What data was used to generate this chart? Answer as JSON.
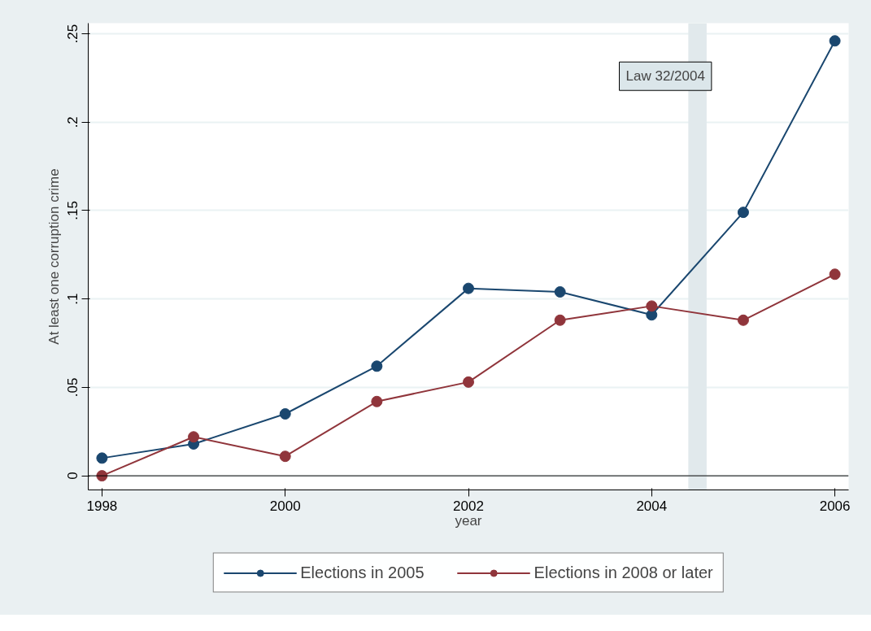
{
  "chart_data": {
    "type": "line",
    "xlabel": "year",
    "ylabel": "At least one corruption crime",
    "x": [
      1998,
      1999,
      2000,
      2001,
      2002,
      2003,
      2004,
      2005,
      2006
    ],
    "series": [
      {
        "name": "Elections in 2005",
        "color": "#1a476f",
        "values": [
          0.01,
          0.018,
          0.035,
          0.062,
          0.106,
          0.104,
          0.091,
          0.149,
          0.246
        ]
      },
      {
        "name": "Elections in 2008 or later",
        "color": "#90353b",
        "values": [
          0,
          0.022,
          0.011,
          0.042,
          0.053,
          0.088,
          0.096,
          0.088,
          0.114
        ]
      }
    ],
    "xlim": [
      1997.85,
      2006.15
    ],
    "ylim": [
      -0.008,
      0.256
    ],
    "xticks": [
      1998,
      2000,
      2002,
      2004,
      2006
    ],
    "yticks": [
      0,
      {
        "value": 0.05,
        "label": ".05"
      },
      {
        "value": 0.1,
        "label": ".1"
      },
      {
        "value": 0.15,
        "label": ".15"
      },
      {
        "value": 0.2,
        "label": ".2"
      },
      {
        "value": 0.25,
        "label": ".25"
      }
    ],
    "bands": [
      {
        "axis": "x",
        "from": 2004.4,
        "to": 2004.6,
        "label": "Law 32/2004",
        "color": "#e1e9ec"
      }
    ],
    "ref_lines": [
      {
        "axis": "y",
        "value": 0,
        "color": "#000000"
      }
    ],
    "grid": "y",
    "legend": "bottom",
    "marker": "circle",
    "line_style": "solid"
  }
}
